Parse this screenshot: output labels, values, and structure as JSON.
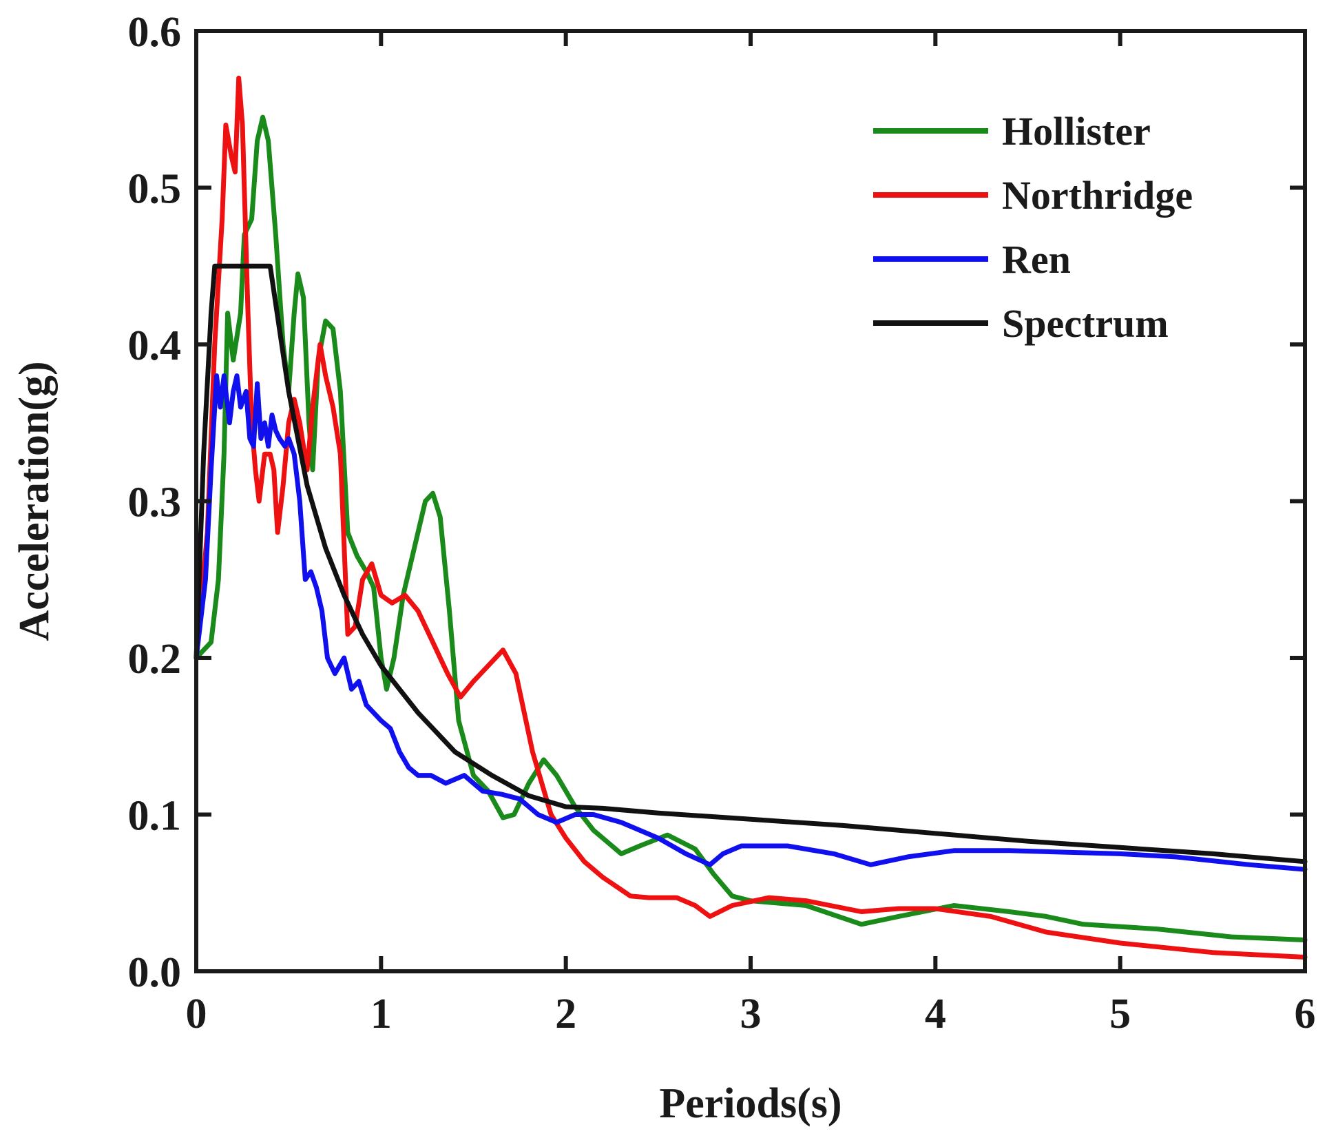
{
  "chart_data": {
    "type": "line",
    "title": "",
    "xlabel": "Periods(s)",
    "ylabel": "Acceleration(g)",
    "xlim": [
      0,
      6
    ],
    "ylim": [
      0,
      0.6
    ],
    "x_ticks": [
      "0",
      "1",
      "2",
      "3",
      "4",
      "5",
      "6"
    ],
    "y_ticks": [
      "0.0",
      "0.1",
      "0.2",
      "0.3",
      "0.4",
      "0.5",
      "0.6"
    ],
    "x_tick_values": [
      0,
      1,
      2,
      3,
      4,
      5,
      6
    ],
    "y_tick_values": [
      0,
      0.1,
      0.2,
      0.3,
      0.4,
      0.5,
      0.6
    ],
    "grid": false,
    "legend_position": "top-right",
    "series": [
      {
        "name": "Hollister",
        "color": "#1a8a1a",
        "points": [
          [
            0,
            0.2
          ],
          [
            0.08,
            0.21
          ],
          [
            0.12,
            0.25
          ],
          [
            0.15,
            0.33
          ],
          [
            0.17,
            0.42
          ],
          [
            0.2,
            0.39
          ],
          [
            0.24,
            0.42
          ],
          [
            0.26,
            0.47
          ],
          [
            0.3,
            0.48
          ],
          [
            0.33,
            0.53
          ],
          [
            0.36,
            0.545
          ],
          [
            0.39,
            0.53
          ],
          [
            0.43,
            0.47
          ],
          [
            0.47,
            0.4
          ],
          [
            0.5,
            0.37
          ],
          [
            0.53,
            0.42
          ],
          [
            0.55,
            0.445
          ],
          [
            0.58,
            0.43
          ],
          [
            0.61,
            0.35
          ],
          [
            0.63,
            0.32
          ],
          [
            0.66,
            0.39
          ],
          [
            0.7,
            0.415
          ],
          [
            0.74,
            0.41
          ],
          [
            0.78,
            0.37
          ],
          [
            0.82,
            0.28
          ],
          [
            0.87,
            0.265
          ],
          [
            0.92,
            0.255
          ],
          [
            0.96,
            0.245
          ],
          [
            1.0,
            0.2
          ],
          [
            1.03,
            0.18
          ],
          [
            1.07,
            0.2
          ],
          [
            1.12,
            0.24
          ],
          [
            1.18,
            0.27
          ],
          [
            1.24,
            0.3
          ],
          [
            1.28,
            0.305
          ],
          [
            1.32,
            0.29
          ],
          [
            1.37,
            0.23
          ],
          [
            1.42,
            0.16
          ],
          [
            1.5,
            0.125
          ],
          [
            1.58,
            0.115
          ],
          [
            1.66,
            0.098
          ],
          [
            1.72,
            0.1
          ],
          [
            1.8,
            0.12
          ],
          [
            1.88,
            0.135
          ],
          [
            1.95,
            0.125
          ],
          [
            2.05,
            0.105
          ],
          [
            2.15,
            0.09
          ],
          [
            2.3,
            0.075
          ],
          [
            2.4,
            0.08
          ],
          [
            2.55,
            0.087
          ],
          [
            2.7,
            0.078
          ],
          [
            2.8,
            0.062
          ],
          [
            2.9,
            0.048
          ],
          [
            3.0,
            0.045
          ],
          [
            3.3,
            0.042
          ],
          [
            3.6,
            0.03
          ],
          [
            3.8,
            0.035
          ],
          [
            4.1,
            0.042
          ],
          [
            4.4,
            0.038
          ],
          [
            4.6,
            0.035
          ],
          [
            4.8,
            0.03
          ],
          [
            5.2,
            0.027
          ],
          [
            5.6,
            0.022
          ],
          [
            6.0,
            0.02
          ]
        ]
      },
      {
        "name": "Northridge",
        "color": "#ee1111",
        "points": [
          [
            0,
            0.2
          ],
          [
            0.06,
            0.28
          ],
          [
            0.1,
            0.4
          ],
          [
            0.14,
            0.48
          ],
          [
            0.16,
            0.54
          ],
          [
            0.19,
            0.52
          ],
          [
            0.21,
            0.51
          ],
          [
            0.23,
            0.57
          ],
          [
            0.25,
            0.54
          ],
          [
            0.28,
            0.42
          ],
          [
            0.3,
            0.35
          ],
          [
            0.32,
            0.32
          ],
          [
            0.34,
            0.3
          ],
          [
            0.37,
            0.33
          ],
          [
            0.4,
            0.33
          ],
          [
            0.42,
            0.32
          ],
          [
            0.44,
            0.28
          ],
          [
            0.47,
            0.31
          ],
          [
            0.5,
            0.35
          ],
          [
            0.53,
            0.365
          ],
          [
            0.56,
            0.35
          ],
          [
            0.6,
            0.32
          ],
          [
            0.63,
            0.36
          ],
          [
            0.67,
            0.4
          ],
          [
            0.7,
            0.38
          ],
          [
            0.74,
            0.36
          ],
          [
            0.78,
            0.33
          ],
          [
            0.82,
            0.215
          ],
          [
            0.86,
            0.22
          ],
          [
            0.9,
            0.25
          ],
          [
            0.95,
            0.26
          ],
          [
            1.0,
            0.24
          ],
          [
            1.06,
            0.235
          ],
          [
            1.13,
            0.24
          ],
          [
            1.2,
            0.23
          ],
          [
            1.28,
            0.21
          ],
          [
            1.36,
            0.19
          ],
          [
            1.43,
            0.175
          ],
          [
            1.5,
            0.185
          ],
          [
            1.58,
            0.195
          ],
          [
            1.66,
            0.205
          ],
          [
            1.73,
            0.19
          ],
          [
            1.82,
            0.14
          ],
          [
            1.92,
            0.1
          ],
          [
            2.0,
            0.085
          ],
          [
            2.1,
            0.07
          ],
          [
            2.2,
            0.06
          ],
          [
            2.35,
            0.048
          ],
          [
            2.45,
            0.047
          ],
          [
            2.6,
            0.047
          ],
          [
            2.7,
            0.042
          ],
          [
            2.78,
            0.035
          ],
          [
            2.9,
            0.042
          ],
          [
            3.1,
            0.047
          ],
          [
            3.3,
            0.045
          ],
          [
            3.6,
            0.038
          ],
          [
            3.8,
            0.04
          ],
          [
            4.0,
            0.04
          ],
          [
            4.3,
            0.035
          ],
          [
            4.6,
            0.025
          ],
          [
            5.0,
            0.018
          ],
          [
            5.5,
            0.012
          ],
          [
            6.0,
            0.009
          ]
        ]
      },
      {
        "name": "Ren",
        "color": "#1010ee",
        "points": [
          [
            0,
            0.2
          ],
          [
            0.05,
            0.25
          ],
          [
            0.08,
            0.32
          ],
          [
            0.11,
            0.38
          ],
          [
            0.13,
            0.36
          ],
          [
            0.15,
            0.38
          ],
          [
            0.18,
            0.35
          ],
          [
            0.2,
            0.37
          ],
          [
            0.22,
            0.38
          ],
          [
            0.24,
            0.36
          ],
          [
            0.27,
            0.37
          ],
          [
            0.29,
            0.34
          ],
          [
            0.31,
            0.335
          ],
          [
            0.33,
            0.375
          ],
          [
            0.35,
            0.34
          ],
          [
            0.37,
            0.35
          ],
          [
            0.39,
            0.335
          ],
          [
            0.41,
            0.355
          ],
          [
            0.43,
            0.345
          ],
          [
            0.45,
            0.34
          ],
          [
            0.48,
            0.335
          ],
          [
            0.5,
            0.34
          ],
          [
            0.53,
            0.33
          ],
          [
            0.56,
            0.3
          ],
          [
            0.59,
            0.25
          ],
          [
            0.62,
            0.255
          ],
          [
            0.65,
            0.245
          ],
          [
            0.68,
            0.23
          ],
          [
            0.71,
            0.2
          ],
          [
            0.75,
            0.19
          ],
          [
            0.8,
            0.2
          ],
          [
            0.84,
            0.18
          ],
          [
            0.88,
            0.185
          ],
          [
            0.92,
            0.17
          ],
          [
            0.96,
            0.165
          ],
          [
            1.0,
            0.16
          ],
          [
            1.05,
            0.155
          ],
          [
            1.1,
            0.14
          ],
          [
            1.15,
            0.13
          ],
          [
            1.2,
            0.125
          ],
          [
            1.27,
            0.125
          ],
          [
            1.35,
            0.12
          ],
          [
            1.45,
            0.125
          ],
          [
            1.55,
            0.115
          ],
          [
            1.65,
            0.113
          ],
          [
            1.75,
            0.11
          ],
          [
            1.85,
            0.1
          ],
          [
            1.95,
            0.095
          ],
          [
            2.05,
            0.1
          ],
          [
            2.15,
            0.1
          ],
          [
            2.3,
            0.095
          ],
          [
            2.5,
            0.085
          ],
          [
            2.65,
            0.075
          ],
          [
            2.78,
            0.068
          ],
          [
            2.85,
            0.075
          ],
          [
            2.95,
            0.08
          ],
          [
            3.2,
            0.08
          ],
          [
            3.45,
            0.075
          ],
          [
            3.65,
            0.068
          ],
          [
            3.85,
            0.073
          ],
          [
            4.1,
            0.077
          ],
          [
            4.4,
            0.077
          ],
          [
            4.7,
            0.076
          ],
          [
            5.0,
            0.075
          ],
          [
            5.3,
            0.073
          ],
          [
            5.7,
            0.068
          ],
          [
            6.0,
            0.065
          ]
        ]
      },
      {
        "name": "Spectrum",
        "color": "#111111",
        "points": [
          [
            0,
            0.2
          ],
          [
            0.04,
            0.33
          ],
          [
            0.08,
            0.42
          ],
          [
            0.1,
            0.45
          ],
          [
            0.4,
            0.45
          ],
          [
            0.5,
            0.37
          ],
          [
            0.6,
            0.31
          ],
          [
            0.7,
            0.27
          ],
          [
            0.8,
            0.24
          ],
          [
            0.9,
            0.215
          ],
          [
            1.0,
            0.195
          ],
          [
            1.2,
            0.165
          ],
          [
            1.4,
            0.14
          ],
          [
            1.6,
            0.125
          ],
          [
            1.8,
            0.112
          ],
          [
            2.0,
            0.105
          ],
          [
            2.2,
            0.104
          ],
          [
            2.5,
            0.101
          ],
          [
            3.0,
            0.097
          ],
          [
            3.5,
            0.093
          ],
          [
            4.0,
            0.088
          ],
          [
            4.5,
            0.083
          ],
          [
            5.0,
            0.079
          ],
          [
            5.5,
            0.075
          ],
          [
            6.0,
            0.07
          ]
        ]
      }
    ]
  }
}
